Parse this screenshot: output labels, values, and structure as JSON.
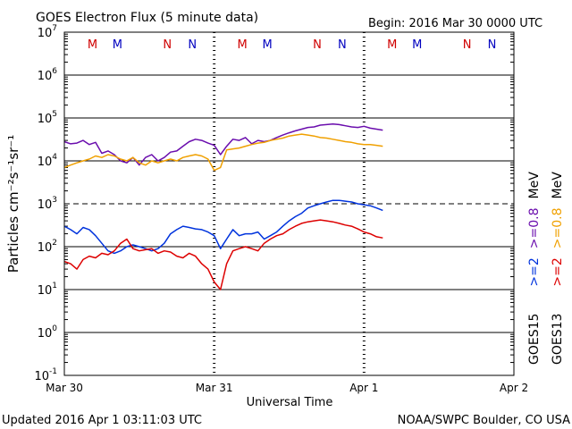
{
  "header": {
    "title": "GOES Electron Flux (5 minute data)",
    "begin": "Begin: 2016 Mar 30 0000 UTC"
  },
  "footer": {
    "updated": "Updated 2016 Apr  1 03:11:03 UTC",
    "credit": "NOAA/SWPC Boulder, CO USA"
  },
  "chart_data": {
    "type": "line",
    "title": "GOES Electron Flux (5 minute data)",
    "xlabel": "Universal Time",
    "ylabel": "Particles cm⁻²s⁻¹sr⁻¹",
    "yscale": "log",
    "ylim": [
      0.1,
      10000000
    ],
    "xlim": [
      0,
      72
    ],
    "x_units": "hours since 2016 Mar 30 0000 UTC",
    "x_ticks": [
      {
        "x": 0,
        "label": "Mar 30"
      },
      {
        "x": 24,
        "label": "Mar 31"
      },
      {
        "x": 48,
        "label": "Apr 1"
      },
      {
        "x": 72,
        "label": "Apr 2"
      }
    ],
    "y_ticks": [
      {
        "exp": "-1",
        "value": 0.1
      },
      {
        "exp": "0",
        "value": 1
      },
      {
        "exp": "1",
        "value": 10
      },
      {
        "exp": "2",
        "value": 100
      },
      {
        "exp": "3",
        "value": 1000
      },
      {
        "exp": "4",
        "value": 10000
      },
      {
        "exp": "5",
        "value": 100000
      },
      {
        "exp": "6",
        "value": 1000000
      },
      {
        "exp": "7",
        "value": 10000000
      }
    ],
    "threshold_line": 1000,
    "markers": [
      {
        "label": "M",
        "x": 4.5,
        "color": "#d00000"
      },
      {
        "label": "M",
        "x": 8.5,
        "color": "#0000c0"
      },
      {
        "label": "N",
        "x": 16.5,
        "color": "#d00000"
      },
      {
        "label": "N",
        "x": 20.5,
        "color": "#0000c0"
      },
      {
        "label": "M",
        "x": 28.5,
        "color": "#d00000"
      },
      {
        "label": "M",
        "x": 32.5,
        "color": "#0000c0"
      },
      {
        "label": "N",
        "x": 40.5,
        "color": "#d00000"
      },
      {
        "label": "N",
        "x": 44.5,
        "color": "#0000c0"
      },
      {
        "label": "M",
        "x": 52.5,
        "color": "#d00000"
      },
      {
        "label": "M",
        "x": 56.5,
        "color": "#0000c0"
      },
      {
        "label": "N",
        "x": 64.5,
        "color": "#d00000"
      },
      {
        "label": "N",
        "x": 68.5,
        "color": "#0000c0"
      }
    ],
    "series": [
      {
        "name": "GOES15 >=0.8 MeV",
        "color": "#6a0dad",
        "x": [
          0,
          1,
          2,
          3,
          4,
          5,
          6,
          7,
          8,
          9,
          10,
          11,
          12,
          13,
          14,
          15,
          16,
          17,
          18,
          19,
          20,
          21,
          22,
          23,
          24,
          25,
          26,
          27,
          28,
          29,
          30,
          31,
          32,
          33,
          34,
          35,
          36,
          37,
          38,
          39,
          40,
          41,
          42,
          43,
          44,
          45,
          46,
          47,
          48,
          49,
          50,
          51
        ],
        "y": [
          28000,
          25000,
          26000,
          30000,
          24000,
          27000,
          15000,
          17000,
          14000,
          10000,
          9000,
          12000,
          8000,
          12000,
          14000,
          10000,
          12000,
          16000,
          17000,
          22000,
          28000,
          32000,
          30000,
          26000,
          23000,
          14000,
          22000,
          32000,
          30000,
          35000,
          25000,
          30000,
          28000,
          30000,
          35000,
          40000,
          45000,
          50000,
          55000,
          60000,
          62000,
          68000,
          70000,
          72000,
          70000,
          66000,
          62000,
          60000,
          64000,
          58000,
          55000,
          52000
        ]
      },
      {
        "name": "GOES13 >=0.8 MeV",
        "color": "#f0a000",
        "x": [
          0,
          1,
          2,
          3,
          4,
          5,
          6,
          7,
          8,
          9,
          10,
          11,
          12,
          13,
          14,
          15,
          16,
          17,
          18,
          19,
          20,
          21,
          22,
          23,
          24,
          25,
          26,
          27,
          28,
          29,
          30,
          31,
          32,
          33,
          34,
          35,
          36,
          37,
          38,
          39,
          40,
          41,
          42,
          43,
          44,
          45,
          46,
          47,
          48,
          49,
          50,
          51
        ],
        "y": [
          7000,
          8000,
          9000,
          10000,
          11000,
          13000,
          12000,
          14000,
          13000,
          11000,
          10000,
          12000,
          9000,
          8000,
          10000,
          9000,
          10000,
          11000,
          10000,
          12000,
          13000,
          14000,
          13000,
          11000,
          6000,
          7000,
          18000,
          19000,
          20000,
          22000,
          24000,
          26000,
          27000,
          30000,
          32000,
          34000,
          38000,
          40000,
          42000,
          40000,
          38000,
          35000,
          34000,
          32000,
          30000,
          28000,
          27000,
          25000,
          24000,
          24000,
          23000,
          22000
        ]
      },
      {
        "name": "GOES15 >=2 MeV",
        "color": "#0033dd",
        "x": [
          0,
          1,
          2,
          3,
          4,
          5,
          6,
          7,
          8,
          9,
          10,
          11,
          12,
          13,
          14,
          15,
          16,
          17,
          18,
          19,
          20,
          21,
          22,
          23,
          24,
          25,
          26,
          27,
          28,
          29,
          30,
          31,
          32,
          33,
          34,
          35,
          36,
          37,
          38,
          39,
          40,
          41,
          42,
          43,
          44,
          45,
          46,
          47,
          48,
          49,
          50,
          51
        ],
        "y": [
          300,
          250,
          200,
          280,
          250,
          180,
          120,
          80,
          70,
          80,
          100,
          110,
          100,
          90,
          80,
          90,
          120,
          200,
          250,
          300,
          280,
          260,
          250,
          220,
          180,
          90,
          150,
          250,
          180,
          200,
          200,
          220,
          150,
          180,
          220,
          300,
          400,
          500,
          600,
          800,
          900,
          1000,
          1100,
          1200,
          1200,
          1150,
          1100,
          1000,
          950,
          900,
          800,
          700
        ]
      },
      {
        "name": "GOES13 >=2 MeV",
        "color": "#dd0000",
        "x": [
          0,
          1,
          2,
          3,
          4,
          5,
          6,
          7,
          8,
          9,
          10,
          11,
          12,
          13,
          14,
          15,
          16,
          17,
          18,
          19,
          20,
          21,
          22,
          23,
          24,
          25,
          26,
          27,
          28,
          29,
          30,
          31,
          32,
          33,
          34,
          35,
          36,
          37,
          38,
          39,
          40,
          41,
          42,
          43,
          44,
          45,
          46,
          47,
          48,
          49,
          50,
          51
        ],
        "y": [
          45,
          40,
          30,
          50,
          60,
          55,
          70,
          65,
          80,
          120,
          150,
          90,
          80,
          85,
          90,
          70,
          80,
          75,
          60,
          55,
          70,
          60,
          40,
          30,
          15,
          10,
          40,
          80,
          90,
          100,
          90,
          80,
          120,
          150,
          180,
          200,
          250,
          300,
          350,
          380,
          400,
          420,
          400,
          380,
          350,
          320,
          300,
          260,
          220,
          200,
          170,
          160
        ]
      }
    ],
    "legend": [
      {
        "satellite": "GOES15",
        "energies": [
          {
            "text": ">=2",
            "color": "#0033dd"
          },
          {
            "text": ">=0.8",
            "color": "#6a0dad"
          },
          {
            "text": "MeV",
            "color": "#000000"
          }
        ]
      },
      {
        "satellite": "GOES13",
        "energies": [
          {
            "text": ">=2",
            "color": "#dd0000"
          },
          {
            "text": ">=0.8",
            "color": "#f0a000"
          },
          {
            "text": "MeV",
            "color": "#000000"
          }
        ]
      }
    ],
    "legend_placement": "right, vertical",
    "grid": "horizontal decade lines"
  }
}
